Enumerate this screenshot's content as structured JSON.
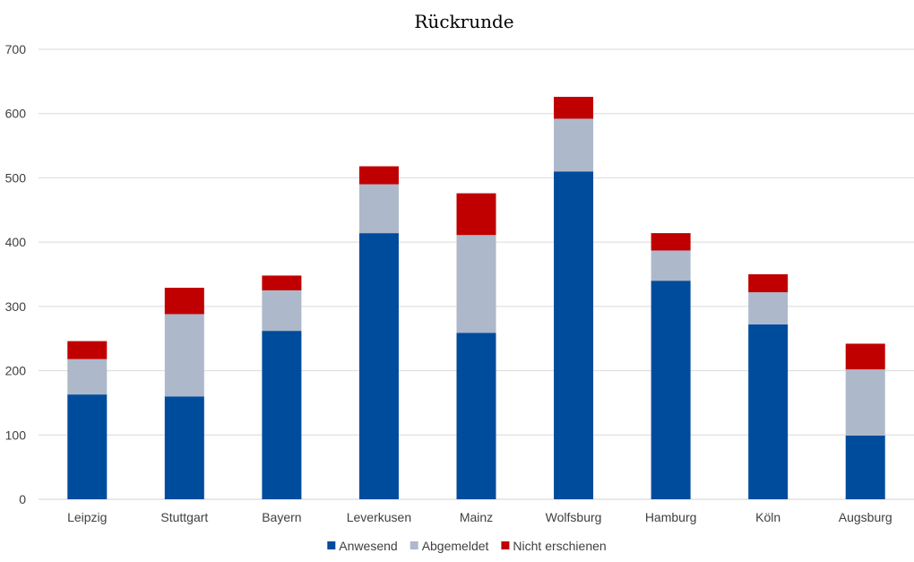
{
  "chart_data": {
    "type": "bar",
    "stacked": true,
    "title": "Rückrunde",
    "categories": [
      "Leipzig",
      "Stuttgart",
      "Bayern",
      "Leverkusen",
      "Mainz",
      "Wolfsburg",
      "Hamburg",
      "Köln",
      "Augsburg"
    ],
    "series": [
      {
        "name": "Anwesend",
        "color": "#004C9C",
        "values": [
          163,
          160,
          262,
          414,
          259,
          510,
          340,
          272,
          99
        ]
      },
      {
        "name": "Abgemeldet",
        "color": "#ADB9CA",
        "values": [
          55,
          128,
          63,
          76,
          152,
          82,
          47,
          50,
          103
        ]
      },
      {
        "name": "Nicht erschienen",
        "color": "#C00000",
        "values": [
          28,
          41,
          23,
          28,
          65,
          34,
          27,
          28,
          40
        ]
      }
    ],
    "ylim": [
      0,
      700
    ],
    "yticks": [
      "0",
      "100",
      "200",
      "300",
      "400",
      "500",
      "600",
      "700"
    ],
    "grid": true,
    "legend_position": "bottom",
    "xlabel": "",
    "ylabel": ""
  }
}
